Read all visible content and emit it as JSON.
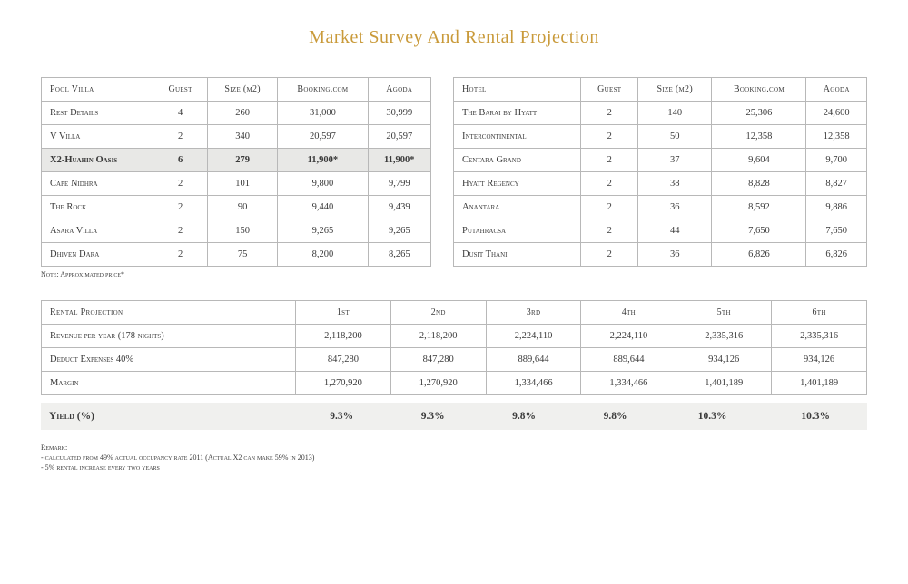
{
  "title": "Market Survey And Rental Projection",
  "poolVilla": {
    "columns": [
      "Pool Villa",
      "Guest",
      "Size (m2)",
      "Booking.com",
      "Agoda"
    ],
    "rows": [
      {
        "cells": [
          "Rest Details",
          "4",
          "260",
          "31,000",
          "30,999"
        ],
        "highlight": false
      },
      {
        "cells": [
          "V Villa",
          "2",
          "340",
          "20,597",
          "20,597"
        ],
        "highlight": false
      },
      {
        "cells": [
          "X2-Huahin Oasis",
          "6",
          "279",
          "11,900*",
          "11,900*"
        ],
        "highlight": true
      },
      {
        "cells": [
          "Cape Nidhra",
          "2",
          "101",
          "9,800",
          "9,799"
        ],
        "highlight": false
      },
      {
        "cells": [
          "The Rock",
          "2",
          "90",
          "9,440",
          "9,439"
        ],
        "highlight": false
      },
      {
        "cells": [
          "Asara Villa",
          "2",
          "150",
          "9,265",
          "9,265"
        ],
        "highlight": false
      },
      {
        "cells": [
          "Dhiven Dara",
          "2",
          "75",
          "8,200",
          "8,265"
        ],
        "highlight": false
      }
    ]
  },
  "hotel": {
    "columns": [
      "Hotel",
      "Guest",
      "Size (m2)",
      "Booking.com",
      "Agoda"
    ],
    "rows": [
      {
        "cells": [
          "The Barai by Hyatt",
          "2",
          "140",
          "25,306",
          "24,600"
        ]
      },
      {
        "cells": [
          "Intercontinental",
          "2",
          "50",
          "12,358",
          "12,358"
        ]
      },
      {
        "cells": [
          "Centara Grand",
          "2",
          "37",
          "9,604",
          "9,700"
        ]
      },
      {
        "cells": [
          "Hyatt Regency",
          "2",
          "38",
          "8,828",
          "8,827"
        ]
      },
      {
        "cells": [
          "Anantara",
          "2",
          "36",
          "8,592",
          "9,886"
        ]
      },
      {
        "cells": [
          "Putahracsa",
          "2",
          "44",
          "7,650",
          "7,650"
        ]
      },
      {
        "cells": [
          "Dusit Thani",
          "2",
          "36",
          "6,826",
          "6,826"
        ]
      }
    ]
  },
  "approxNote": "Note: Approximated price*",
  "projection": {
    "columns": [
      "Rental Projection",
      "1st",
      "2nd",
      "3rd",
      "4th",
      "5th",
      "6th"
    ],
    "rows": [
      {
        "cells": [
          "Revenue per year (178 nights)",
          "2,118,200",
          "2,118,200",
          "2,224,110",
          "2,224,110",
          "2,335,316",
          "2,335,316"
        ]
      },
      {
        "cells": [
          "Deduct Expenses 40%",
          "847,280",
          "847,280",
          "889,644",
          "889,644",
          "934,126",
          "934,126"
        ]
      },
      {
        "cells": [
          "Margin",
          "1,270,920",
          "1,270,920",
          "1,334,466",
          "1,334,466",
          "1,401,189",
          "1,401,189"
        ]
      }
    ]
  },
  "yield": {
    "label": "Yield (%)",
    "values": [
      "9.3%",
      "9.3%",
      "9.8%",
      "9.8%",
      "10.3%",
      "10.3%"
    ]
  },
  "remarks": {
    "heading": "Remark:",
    "line1": "- calculated from 49% actual occupancy rate 2011 (Actual X2 can make 59% in 2013)",
    "line2": "- 5% rental increase every two years"
  },
  "colors": {
    "title": "#c99a3a",
    "border": "#b8b8b8",
    "highlight": "#e8e8e6",
    "yieldBg": "#f0f0ee",
    "text": "#3a3a3a",
    "background": "#ffffff"
  }
}
